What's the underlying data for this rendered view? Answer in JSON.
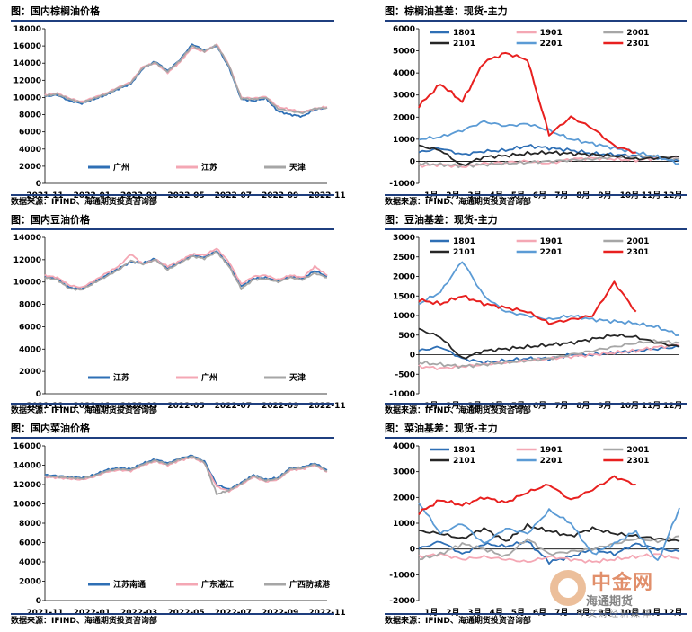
{
  "chart_data": [
    {
      "id": "palm-price",
      "type": "line",
      "title": "图：国内棕榈油价格",
      "source": "数据来源：IFIND、海通期货投资咨询部",
      "x_ticks": [
        "2021-11",
        "2022-01",
        "2022-03",
        "2022-05",
        "2022-07",
        "2022-09",
        "2022-11"
      ],
      "ylim": [
        0,
        18000
      ],
      "y_ticks": [
        0,
        2000,
        4000,
        6000,
        8000,
        10000,
        12000,
        14000,
        16000,
        18000
      ],
      "legend_position": "bottom",
      "series": [
        {
          "name": "广州",
          "color": "#2e6fb5",
          "values": [
            10100,
            10300,
            9600,
            9300,
            9800,
            10300,
            11000,
            11600,
            13400,
            14200,
            13100,
            14400,
            16200,
            15500,
            16000,
            13500,
            9800,
            9600,
            9900,
            8400,
            8000,
            7800,
            8600,
            8800
          ]
        },
        {
          "name": "江苏",
          "color": "#f4a7b4",
          "values": [
            10300,
            10500,
            9900,
            9500,
            10000,
            10500,
            11200,
            11800,
            13600,
            14000,
            12900,
            14100,
            15800,
            15300,
            16200,
            13800,
            10000,
            9900,
            10100,
            8900,
            8600,
            8300,
            8700,
            8900
          ]
        },
        {
          "name": "天津",
          "color": "#a6a6a6",
          "values": [
            10200,
            10400,
            9800,
            9400,
            9900,
            10400,
            11100,
            11700,
            13500,
            14100,
            13000,
            14300,
            16000,
            15400,
            16100,
            13700,
            9900,
            9800,
            10000,
            8700,
            8400,
            8200,
            8700,
            8800
          ]
        }
      ]
    },
    {
      "id": "palm-basis",
      "type": "line",
      "title": "图：棕榈油基差：现货-主力",
      "source": "数据来源：IFIND、海通期货投资咨询部",
      "x_ticks": [
        "1月",
        "2月",
        "3月",
        "4月",
        "5月",
        "6月",
        "7月",
        "8月",
        "9月",
        "10月",
        "11月",
        "12月"
      ],
      "ylim": [
        -1000,
        6000
      ],
      "y_ticks": [
        -1000,
        0,
        1000,
        2000,
        3000,
        4000,
        5000,
        6000
      ],
      "legend_position": "top",
      "series": [
        {
          "name": "1801",
          "color": "#2e6fb5",
          "values": [
            400,
            600,
            300,
            450,
            500,
            700,
            600,
            500,
            350,
            300,
            250,
            150,
            0
          ]
        },
        {
          "name": "1901",
          "color": "#f4a7b4",
          "values": [
            -200,
            -150,
            -250,
            -100,
            -50,
            0,
            -100,
            100,
            150,
            100,
            50,
            150,
            200
          ]
        },
        {
          "name": "2001",
          "color": "#a6a6a6",
          "values": [
            -100,
            -150,
            -200,
            -150,
            -100,
            -50,
            0,
            50,
            100,
            200,
            250,
            200,
            100
          ]
        },
        {
          "name": "2101",
          "color": "#262626",
          "values": [
            700,
            500,
            -200,
            200,
            250,
            350,
            400,
            350,
            300,
            250,
            100,
            150,
            200
          ]
        },
        {
          "name": "2201",
          "color": "#5b9bd5",
          "values": [
            1000,
            1100,
            1400,
            1800,
            1600,
            1700,
            1400,
            1000,
            800,
            600,
            400,
            200,
            -100
          ]
        },
        {
          "name": "2301",
          "color": "#e8201f",
          "values": [
            2500,
            3500,
            2700,
            4500,
            4900,
            4600,
            1200,
            2000,
            1500,
            700,
            400,
            null,
            null
          ]
        }
      ]
    },
    {
      "id": "soy-price",
      "type": "line",
      "title": "图：国内豆油价格",
      "source": "数据来源：IFIND、海通期货投资咨询部",
      "x_ticks": [
        "2021-11",
        "2022-01",
        "2022-03",
        "2022-05",
        "2022-07",
        "2022-09",
        "2022-11"
      ],
      "ylim": [
        0,
        14000
      ],
      "y_ticks": [
        0,
        2000,
        4000,
        6000,
        8000,
        10000,
        12000,
        14000
      ],
      "legend_position": "bottom",
      "series": [
        {
          "name": "江苏",
          "color": "#2e6fb5",
          "values": [
            10500,
            10300,
            9500,
            9400,
            10000,
            10600,
            11200,
            11800,
            11700,
            12100,
            11200,
            11800,
            12400,
            12200,
            12800,
            11500,
            9600,
            10300,
            10400,
            10100,
            10500,
            10300,
            11000,
            10500
          ]
        },
        {
          "name": "广州",
          "color": "#f4a7b4",
          "values": [
            10600,
            10400,
            9700,
            9500,
            10100,
            10800,
            11400,
            12500,
            11600,
            12000,
            11400,
            11900,
            12500,
            12400,
            13000,
            11800,
            9800,
            10500,
            10600,
            10200,
            10600,
            10400,
            11400,
            10600
          ]
        },
        {
          "name": "天津",
          "color": "#a6a6a6",
          "values": [
            10400,
            10200,
            9400,
            9300,
            9900,
            10500,
            11100,
            11900,
            11600,
            12000,
            11100,
            11700,
            12300,
            12100,
            12700,
            11400,
            9400,
            10200,
            10300,
            10000,
            10400,
            10200,
            10800,
            10400
          ]
        }
      ]
    },
    {
      "id": "soy-basis",
      "type": "line",
      "title": "图：豆油基差：现货-主力",
      "source": "数据来源：IFIND、海通期货投资咨询部",
      "x_ticks": [
        "1月",
        "2月",
        "3月",
        "4月",
        "5月",
        "6月",
        "7月",
        "8月",
        "9月",
        "10月",
        "11月",
        "12月"
      ],
      "ylim": [
        -1000,
        3000
      ],
      "y_ticks": [
        -1000,
        -500,
        0,
        500,
        1000,
        1500,
        2000,
        2500,
        3000
      ],
      "legend_position": "top",
      "series": [
        {
          "name": "1801",
          "color": "#2e6fb5",
          "values": [
            100,
            200,
            -100,
            -200,
            -150,
            -100,
            -100,
            0,
            0,
            50,
            100,
            150,
            200
          ]
        },
        {
          "name": "1901",
          "color": "#f4a7b4",
          "values": [
            -300,
            -350,
            -300,
            -250,
            -200,
            -150,
            -100,
            -50,
            0,
            50,
            100,
            200,
            250
          ]
        },
        {
          "name": "2001",
          "color": "#a6a6a6",
          "values": [
            -200,
            -250,
            -300,
            -250,
            -200,
            -150,
            -100,
            0,
            100,
            200,
            300,
            350,
            300
          ]
        },
        {
          "name": "2101",
          "color": "#262626",
          "values": [
            650,
            450,
            -100,
            100,
            150,
            200,
            250,
            300,
            400,
            500,
            450,
            300,
            200
          ]
        },
        {
          "name": "2201",
          "color": "#5b9bd5",
          "values": [
            1300,
            1600,
            2400,
            1500,
            1100,
            1000,
            900,
            1000,
            900,
            850,
            800,
            700,
            500
          ]
        },
        {
          "name": "2301",
          "color": "#e8201f",
          "values": [
            1400,
            1300,
            1500,
            1300,
            1200,
            1100,
            800,
            900,
            1000,
            1850,
            1100,
            null,
            null
          ]
        }
      ]
    },
    {
      "id": "rapeseed-price",
      "type": "line",
      "title": "图：国内菜油价格",
      "source": "数据来源：IFIND、海通期货投资咨询部",
      "x_ticks": [
        "2021-11",
        "2022-01",
        "2022-03",
        "2022-05",
        "2022-07",
        "2022-09",
        "2022-11"
      ],
      "ylim": [
        0,
        16000
      ],
      "y_ticks": [
        0,
        2000,
        4000,
        6000,
        8000,
        10000,
        12000,
        14000,
        16000
      ],
      "legend_position": "bottom",
      "series": [
        {
          "name": "江苏南通",
          "color": "#2e6fb5",
          "values": [
            13000,
            12900,
            12800,
            12700,
            13000,
            13500,
            13700,
            13600,
            14200,
            14600,
            14200,
            14700,
            15000,
            14400,
            12000,
            11500,
            12200,
            13000,
            12500,
            12700,
            13700,
            13800,
            14200,
            13500
          ]
        },
        {
          "name": "广东湛江",
          "color": "#f4a7b4",
          "values": [
            12800,
            12700,
            12600,
            12500,
            12800,
            13300,
            13500,
            13400,
            14000,
            14400,
            14000,
            14500,
            14800,
            14200,
            11800,
            11300,
            12000,
            12800,
            12300,
            12500,
            13500,
            13600,
            14000,
            13300
          ]
        },
        {
          "name": "广西防城港",
          "color": "#a6a6a6",
          "values": [
            12900,
            12800,
            12700,
            12600,
            12900,
            13400,
            13600,
            13500,
            14100,
            14500,
            14100,
            14600,
            14900,
            14300,
            11000,
            11400,
            12100,
            12900,
            12400,
            12600,
            13600,
            13700,
            14100,
            13400
          ]
        }
      ]
    },
    {
      "id": "rapeseed-basis",
      "type": "line",
      "title": "图：菜油基差：现货-主力",
      "source": "数据来源：IFIND、海通期货投资咨询部",
      "x_ticks": [
        "1月",
        "2月",
        "3月",
        "4月",
        "5月",
        "6月",
        "7月",
        "8月",
        "9月",
        "10月",
        "11月",
        "12月"
      ],
      "ylim": [
        -2000,
        4000
      ],
      "y_ticks": [
        -2000,
        -1000,
        0,
        1000,
        2000,
        3000,
        4000
      ],
      "legend_position": "top",
      "series": [
        {
          "name": "1801",
          "color": "#2e6fb5",
          "values": [
            0,
            300,
            -200,
            200,
            100,
            300,
            -500,
            -300,
            0,
            -200,
            200,
            0,
            -100
          ]
        },
        {
          "name": "1901",
          "color": "#f4a7b4",
          "values": [
            -300,
            -200,
            -400,
            -300,
            -400,
            -500,
            -300,
            -400,
            -500,
            -400,
            -300,
            -200,
            -400
          ]
        },
        {
          "name": "2001",
          "color": "#a6a6a6",
          "values": [
            -400,
            -200,
            200,
            0,
            -300,
            400,
            -200,
            -100,
            0,
            200,
            400,
            300,
            500
          ]
        },
        {
          "name": "2101",
          "color": "#262626",
          "values": [
            700,
            600,
            400,
            800,
            300,
            900,
            700,
            500,
            800,
            600,
            500,
            400,
            300
          ]
        },
        {
          "name": "2201",
          "color": "#5b9bd5",
          "values": [
            1800,
            600,
            1000,
            200,
            800,
            600,
            1500,
            1000,
            -200,
            200,
            700,
            -500,
            1600
          ]
        },
        {
          "name": "2301",
          "color": "#e8201f",
          "values": [
            1400,
            1900,
            1700,
            2000,
            1800,
            2200,
            2500,
            1900,
            2300,
            2800,
            2500,
            null,
            null
          ]
        }
      ]
    }
  ],
  "watermark": {
    "brand": "中金网",
    "overlay": "海通期货",
    "tagline": "中文财经新媒体"
  }
}
